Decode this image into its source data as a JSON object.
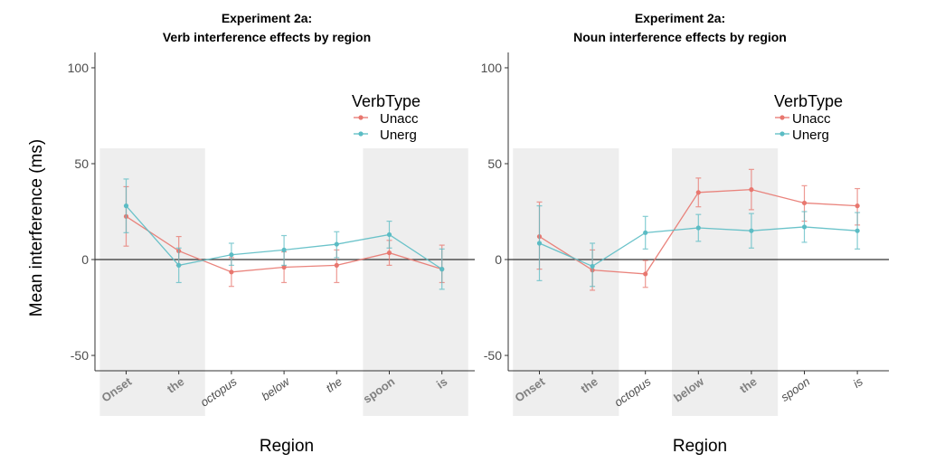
{
  "chart_data": [
    {
      "type": "line",
      "title_line1": "Experiment 2a:",
      "title_line2": "Verb interference effects by region",
      "xlabel": "Region",
      "ylabel": "Mean interference (ms)",
      "ylim": [
        -58,
        108
      ],
      "yticks": [
        -50,
        0,
        50,
        100
      ],
      "categories": [
        "Onset",
        "the",
        "octopus",
        "below",
        "the",
        "spoon",
        "is"
      ],
      "category_styles": [
        "bold",
        "bold",
        "italic",
        "italic",
        "italic",
        "bold",
        "bold"
      ],
      "shaded_regions": [
        [
          0,
          1
        ],
        [
          5,
          6
        ]
      ],
      "zero_line": true,
      "legend": {
        "title": "VerbType",
        "placement": "top-right"
      },
      "series": [
        {
          "name": "Unacc",
          "color": "#e8776f",
          "values": [
            22.5,
            4.5,
            -6.5,
            -4,
            -3,
            3.5,
            -5
          ],
          "error_low": [
            7,
            -3,
            -14,
            -12,
            -12,
            -3,
            -12
          ],
          "error_high": [
            38,
            12,
            1,
            4,
            5,
            10,
            7.5
          ]
        },
        {
          "name": "Unerg",
          "color": "#5bbcc4",
          "values": [
            28,
            -3,
            2.5,
            5,
            8,
            13,
            -5
          ],
          "error_low": [
            14,
            -12,
            -3,
            -3,
            1,
            6,
            -15.5
          ],
          "error_high": [
            42,
            6,
            8.5,
            12.5,
            14.5,
            20,
            5.5
          ]
        }
      ]
    },
    {
      "type": "line",
      "title_line1": "Experiment  2a:",
      "title_line2": "Noun interference effects by region",
      "xlabel": "Region",
      "ylabel": "",
      "ylim": [
        -58,
        108
      ],
      "yticks": [
        -50,
        0,
        50,
        100
      ],
      "categories": [
        "Onset",
        "the",
        "octopus",
        "below",
        "the",
        "spoon",
        "is"
      ],
      "category_styles": [
        "bold",
        "bold",
        "italic",
        "bold",
        "bold",
        "italic",
        "italic"
      ],
      "shaded_regions": [
        [
          0,
          1
        ],
        [
          3,
          4
        ]
      ],
      "zero_line": true,
      "legend": {
        "title": "VerbType",
        "placement": "top-right"
      },
      "series": [
        {
          "name": "Unacc",
          "color": "#e8776f",
          "values": [
            12,
            -5.5,
            -7.5,
            35,
            36.5,
            29.5,
            28
          ],
          "error_low": [
            -5,
            -16,
            -14.5,
            27.5,
            26,
            20,
            18
          ],
          "error_high": [
            30,
            5,
            -0.5,
            42.5,
            47,
            38.5,
            37
          ]
        },
        {
          "name": "Unerg",
          "color": "#5bbcc4",
          "values": [
            8.5,
            -3.5,
            14,
            16.5,
            15,
            17,
            15
          ],
          "error_low": [
            -11,
            -14,
            5.5,
            9.5,
            6,
            9,
            5.5
          ],
          "error_high": [
            28,
            8.5,
            22.5,
            23.5,
            24,
            25,
            24.5
          ]
        }
      ]
    }
  ]
}
